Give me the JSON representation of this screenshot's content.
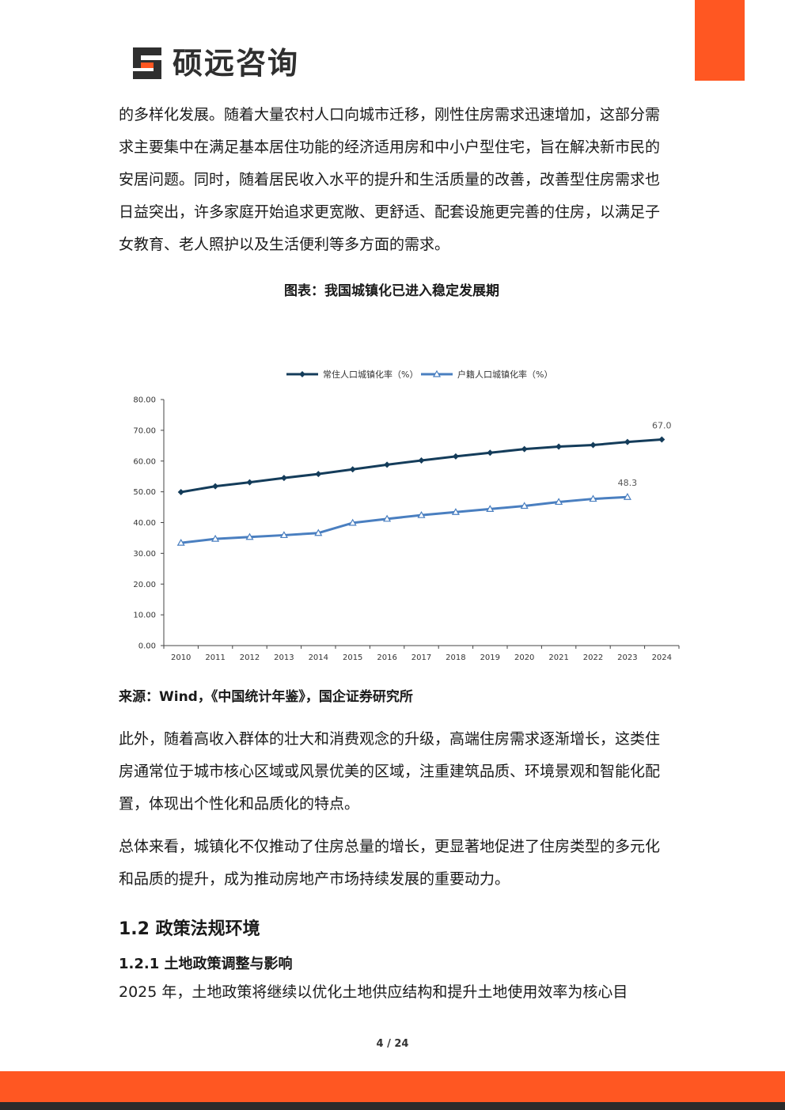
{
  "brand": {
    "name": "硕远咨询"
  },
  "paragraphs": {
    "p1": "的多样化发展。随着大量农村人口向城市迁移，刚性住房需求迅速增加，这部分需求主要集中在满足基本居住功能的经济适用房和中小户型住宅，旨在解决新市民的安居问题。同时，随着居民收入水平的提升和生活质量的改善，改善型住房需求也日益突出，许多家庭开始追求更宽敞、更舒适、配套设施更完善的住房，以满足子女教育、老人照护以及生活便利等多方面的需求。",
    "p2": "此外，随着高收入群体的壮大和消费观念的升级，高端住房需求逐渐增长，这类住房通常位于城市核心区域或风景优美的区域，注重建筑品质、环境景观和智能化配置，体现出个性化和品质化的特点。",
    "p3": "总体来看，城镇化不仅推动了住房总量的增长，更显著地促进了住房类型的多元化和品质的提升，成为推动房地产市场持续发展的重要动力。",
    "p4": "2025 年，土地政策将继续以优化土地供应结构和提升土地使用效率为核心目"
  },
  "figure": {
    "title": "图表：我国城镇化已进入稳定发展期",
    "source": "来源：Wind，《中国统计年鉴》，国企证券研究所"
  },
  "chart_data": {
    "type": "line",
    "categories": [
      "2010",
      "2011",
      "2012",
      "2013",
      "2014",
      "2015",
      "2016",
      "2017",
      "2018",
      "2019",
      "2020",
      "2021",
      "2022",
      "2023",
      "2024"
    ],
    "ylim": [
      0,
      80
    ],
    "yticks": [
      "0.00",
      "10.00",
      "20.00",
      "30.00",
      "40.00",
      "50.00",
      "60.00",
      "70.00",
      "80.00"
    ],
    "legend_position": "top",
    "grid": false,
    "series": [
      {
        "name": "常住人口城镇化率（%）",
        "color": "#143c5a",
        "marker": "diamond",
        "values": [
          49.9,
          51.8,
          53.1,
          54.5,
          55.8,
          57.3,
          58.8,
          60.2,
          61.5,
          62.7,
          63.9,
          64.7,
          65.2,
          66.2,
          67.0
        ]
      },
      {
        "name": "户籍人口城镇化率（%）",
        "color": "#4a7fc0",
        "marker": "triangle",
        "values": [
          33.4,
          34.7,
          35.3,
          35.9,
          36.6,
          39.9,
          41.2,
          42.4,
          43.4,
          44.4,
          45.4,
          46.7,
          47.7,
          48.3,
          null
        ]
      }
    ],
    "annotations": [
      {
        "series": 0,
        "category": "2024",
        "text": "67.0"
      },
      {
        "series": 1,
        "category": "2023",
        "text": "48.3"
      }
    ]
  },
  "headings": {
    "h2": "1.2  政策法规环境",
    "h3": "1.2.1 土地政策调整与影响"
  },
  "page": {
    "number": "4 / 24"
  }
}
